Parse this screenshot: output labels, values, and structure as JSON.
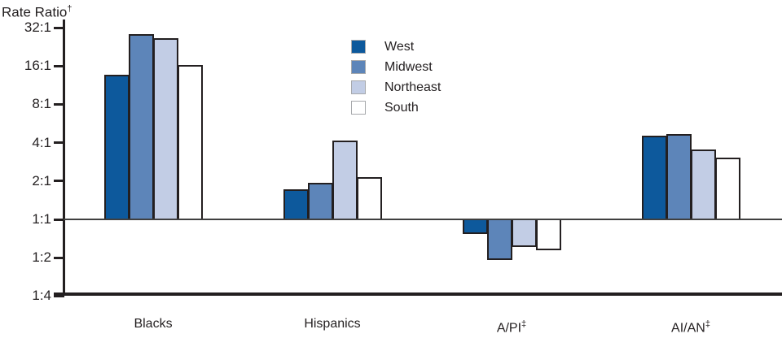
{
  "title": {
    "text": "Rate Ratio",
    "sup": "†"
  },
  "colors": {
    "bar_border": "#231f20",
    "axis": "#231f20",
    "baseline_line": "#3f3f3f",
    "text": "#231f20",
    "legend_swatch_border": "#a7a9ac",
    "background": "#ffffff"
  },
  "chart_data": {
    "type": "bar",
    "scale": "log2",
    "ylabel": "Rate Ratio†",
    "ylim": [
      0.25,
      32
    ],
    "baseline_label": "1:1",
    "grid": "off",
    "legend_position": "top-center",
    "y_ticks": [
      {
        "label": "32:1",
        "value": 32
      },
      {
        "label": "16:1",
        "value": 16
      },
      {
        "label": "8:1",
        "value": 8
      },
      {
        "label": "4:1",
        "value": 4
      },
      {
        "label": "2:1",
        "value": 2
      },
      {
        "label": "1:1",
        "value": 1
      },
      {
        "label": "1:2",
        "value": 0.5
      },
      {
        "label": "1:4",
        "value": 0.25
      }
    ],
    "categories": [
      {
        "label": "Blacks",
        "sup": ""
      },
      {
        "label": "Hispanics",
        "sup": ""
      },
      {
        "label": "A/PI",
        "sup": "‡"
      },
      {
        "label": "AI/AN",
        "sup": "‡"
      }
    ],
    "series": [
      {
        "name": "West",
        "color": "#0d599c",
        "values": [
          13.5,
          1.7,
          0.8,
          4.5
        ]
      },
      {
        "name": "Midwest",
        "color": "#5d85b9",
        "values": [
          28,
          1.9,
          0.5,
          4.6
        ]
      },
      {
        "name": "Northeast",
        "color": "#c2cde5",
        "values": [
          26,
          4.1,
          0.63,
          3.5
        ]
      },
      {
        "name": "South",
        "color": "#ffffff",
        "values": [
          16,
          2.1,
          0.6,
          3.0
        ]
      }
    ]
  }
}
